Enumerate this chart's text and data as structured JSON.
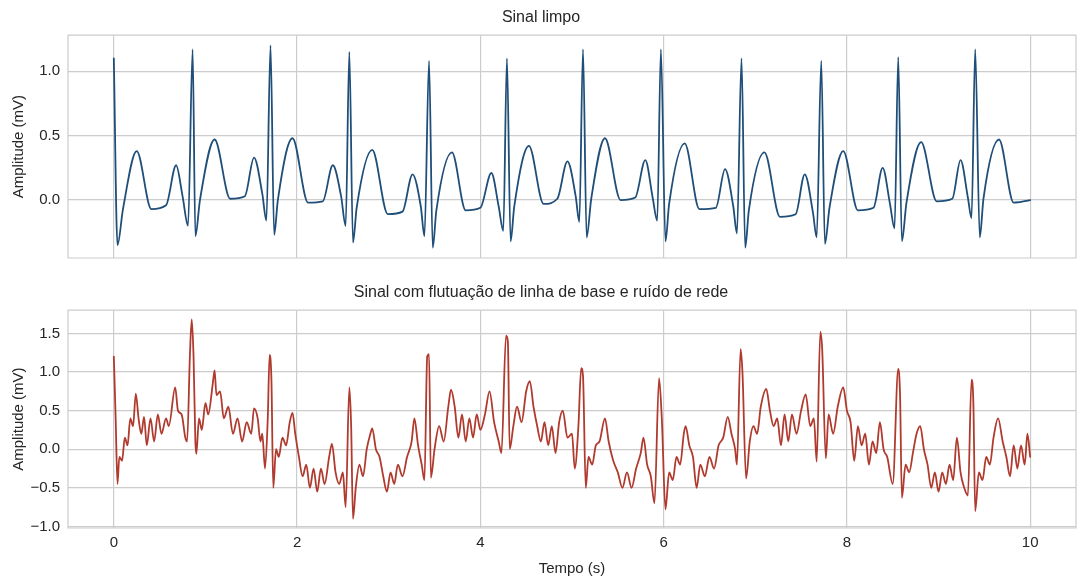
{
  "chart_data": [
    {
      "type": "line",
      "title": "Sinal limpo",
      "ylabel": "Amplitude (mV)",
      "tick_labels": "y",
      "grid": true,
      "legend": false,
      "marker": "none",
      "line_style": "solid",
      "xlim": [
        -0.5,
        10.5
      ],
      "xticks": [
        0,
        2,
        4,
        6,
        8,
        10
      ],
      "ylim": [
        -0.45,
        1.28
      ],
      "yticks": [
        {
          "value": 0,
          "label": "0.0"
        },
        {
          "value": 0.5,
          "label": "0.5"
        },
        {
          "value": 1,
          "label": "1.0"
        }
      ],
      "series": [
        {
          "color": "#1f4e79",
          "x": [
            0,
            0.04,
            0.1,
            0.25,
            0.41,
            0.57,
            0.68,
            0.75,
            0.81,
            0.86,
            0.89,
            0.94,
            1.1,
            1.27,
            1.43,
            1.53,
            1.62,
            1.665,
            1.71,
            1.75,
            1.79,
            1.95,
            2.12,
            2.28,
            2.39,
            2.48,
            2.53,
            2.57,
            2.61,
            2.65,
            2.82,
            2.99,
            3.15,
            3.26,
            3.35,
            3.39,
            3.44,
            3.48,
            3.52,
            3.69,
            3.84,
            4.0,
            4.12,
            4.2,
            4.25,
            4.29,
            4.33,
            4.37,
            4.53,
            4.69,
            4.84,
            4.95,
            5.04,
            5.08,
            5.12,
            5.16,
            5.21,
            5.36,
            5.53,
            5.69,
            5.8,
            5.88,
            5.93,
            5.97,
            6.02,
            6.06,
            6.23,
            6.39,
            6.57,
            6.67,
            6.76,
            6.8,
            6.85,
            6.89,
            6.93,
            7.1,
            7.27,
            7.44,
            7.54,
            7.63,
            7.67,
            7.72,
            7.76,
            7.81,
            7.96,
            8.12,
            8.29,
            8.39,
            8.47,
            8.52,
            8.56,
            8.6,
            8.65,
            8.81,
            8.98,
            9.15,
            9.24,
            9.32,
            9.36,
            9.4,
            9.45,
            9.49,
            9.66,
            9.82,
            10
          ],
          "values": [
            1.1,
            -0.35,
            -0.07,
            0.38,
            -0.07,
            -0.04,
            0.27,
            0.03,
            -0.2,
            1.17,
            -0.28,
            0.0,
            0.47,
            0.01,
            0.03,
            0.33,
            0.05,
            -0.16,
            1.2,
            -0.27,
            0.0,
            0.48,
            -0.02,
            -0.01,
            0.27,
            0.03,
            -0.2,
            1.15,
            -0.33,
            -0.06,
            0.39,
            -0.11,
            -0.09,
            0.2,
            -0.05,
            -0.28,
            1.08,
            -0.37,
            -0.08,
            0.37,
            -0.08,
            -0.06,
            0.21,
            -0.05,
            -0.24,
            1.1,
            -0.32,
            -0.05,
            0.42,
            -0.03,
            0.01,
            0.3,
            0.03,
            -0.17,
            1.17,
            -0.29,
            0.01,
            0.48,
            0.0,
            0.02,
            0.31,
            0.02,
            -0.16,
            1.17,
            -0.32,
            -0.03,
            0.44,
            -0.07,
            -0.06,
            0.24,
            -0.05,
            -0.26,
            1.1,
            -0.37,
            -0.08,
            0.37,
            -0.13,
            -0.11,
            0.2,
            -0.1,
            -0.29,
            1.08,
            -0.34,
            -0.06,
            0.38,
            -0.08,
            -0.06,
            0.25,
            -0.03,
            -0.22,
            1.11,
            -0.32,
            -0.02,
            0.45,
            -0.01,
            0.01,
            0.31,
            0.02,
            -0.14,
            1.17,
            -0.29,
            0.01,
            0.47,
            -0.02,
            0.0
          ]
        }
      ]
    },
    {
      "type": "line",
      "title": "Sinal com flutuação de linha de base e ruído de rede",
      "xlabel": "Tempo (s)",
      "ylabel": "Amplitude (mV)",
      "grid": true,
      "legend": false,
      "marker": "none",
      "line_style": "solid",
      "xlim": [
        -0.5,
        10.5
      ],
      "xticks": [
        0,
        2,
        4,
        6,
        8,
        10
      ],
      "ylim": [
        -1.02,
        1.8
      ],
      "yticks": [
        {
          "value": -1,
          "label": "−1.0"
        },
        {
          "value": -0.5,
          "label": "−0.5"
        },
        {
          "value": 0,
          "label": "0.0"
        },
        {
          "value": 0.5,
          "label": "0.5"
        },
        {
          "value": 1,
          "label": "1.0"
        },
        {
          "value": 1.5,
          "label": "1.5"
        }
      ],
      "series": [
        {
          "color": "#b03a2e",
          "x": [
            0,
            0.02,
            0.04,
            0.06,
            0.09,
            0.12,
            0.15,
            0.18,
            0.21,
            0.24,
            0.27,
            0.3,
            0.33,
            0.36,
            0.4,
            0.44,
            0.48,
            0.52,
            0.57,
            0.6,
            0.67,
            0.7,
            0.74,
            0.78,
            0.8,
            0.83,
            0.85,
            0.87,
            0.89,
            0.9,
            0.93,
            0.96,
            1.0,
            1.03,
            1.08,
            1.1,
            1.12,
            1.16,
            1.2,
            1.25,
            1.3,
            1.35,
            1.4,
            1.45,
            1.5,
            1.53,
            1.57,
            1.6,
            1.62,
            1.65,
            1.68,
            1.7,
            1.72,
            1.74,
            1.77,
            1.8,
            1.84,
            1.88,
            1.92,
            1.95,
            1.98,
            2.02,
            2.06,
            2.1,
            2.14,
            2.18,
            2.22,
            2.26,
            2.3,
            2.35,
            2.38,
            2.42,
            2.46,
            2.5,
            2.53,
            2.57,
            2.59,
            2.61,
            2.64,
            2.68,
            2.72,
            2.76,
            2.8,
            2.82,
            2.86,
            2.9,
            2.94,
            2.98,
            3.02,
            3.06,
            3.1,
            3.15,
            3.2,
            3.25,
            3.28,
            3.32,
            3.36,
            3.39,
            3.42,
            3.44,
            3.46,
            3.5,
            3.55,
            3.6,
            3.65,
            3.68,
            3.72,
            3.76,
            3.8,
            3.84,
            3.88,
            3.92,
            3.96,
            4.0,
            4.05,
            4.1,
            4.15,
            4.2,
            4.23,
            4.28,
            4.3,
            4.32,
            4.36,
            4.4,
            4.45,
            4.5,
            4.54,
            4.58,
            4.62,
            4.66,
            4.7,
            4.74,
            4.78,
            4.82,
            4.86,
            4.9,
            4.95,
            5.0,
            5.03,
            5.07,
            5.1,
            5.12,
            5.15,
            5.18,
            5.22,
            5.26,
            5.3,
            5.36,
            5.4,
            5.45,
            5.5,
            5.55,
            5.6,
            5.65,
            5.7,
            5.75,
            5.78,
            5.82,
            5.86,
            5.9,
            5.95,
            5.98,
            6.02,
            6.06,
            6.1,
            6.14,
            6.18,
            6.22,
            6.24,
            6.28,
            6.32,
            6.36,
            6.4,
            6.45,
            6.5,
            6.55,
            6.6,
            6.65,
            6.7,
            6.74,
            6.78,
            6.8,
            6.84,
            6.86,
            6.9,
            6.94,
            6.98,
            7.02,
            7.06,
            7.12,
            7.16,
            7.2,
            7.24,
            7.28,
            7.32,
            7.36,
            7.4,
            7.45,
            7.5,
            7.55,
            7.6,
            7.64,
            7.67,
            7.71,
            7.73,
            7.77,
            7.8,
            7.85,
            7.9,
            7.96,
            8.0,
            8.04,
            8.08,
            8.12,
            8.16,
            8.2,
            8.24,
            8.28,
            8.32,
            8.36,
            8.4,
            8.44,
            8.5,
            8.56,
            8.58,
            8.6,
            8.64,
            8.68,
            8.72,
            8.76,
            8.8,
            8.84,
            8.88,
            8.92,
            8.96,
            9.0,
            9.04,
            9.08,
            9.12,
            9.16,
            9.2,
            9.24,
            9.28,
            9.32,
            9.36,
            9.38,
            9.4,
            9.44,
            9.48,
            9.52,
            9.56,
            9.6,
            9.65,
            9.7,
            9.74,
            9.78,
            9.82,
            9.86,
            9.9,
            9.94,
            9.97,
            10
          ],
          "values": [
            1.2,
            0.4,
            -0.45,
            -0.1,
            -0.15,
            0.15,
            0.05,
            0.4,
            0.3,
            0.72,
            0.4,
            0.2,
            0.42,
            0.05,
            0.4,
            0.1,
            0.45,
            0.2,
            0.4,
            0.3,
            0.8,
            0.5,
            0.45,
            0.15,
            0.1,
            1.2,
            1.68,
            1.2,
            0.1,
            -0.06,
            0.4,
            0.25,
            0.6,
            0.45,
            0.85,
            1.02,
            0.7,
            0.75,
            0.4,
            0.55,
            0.2,
            0.4,
            0.1,
            0.35,
            0.2,
            0.53,
            0.4,
            0.1,
            0.2,
            -0.25,
            0.4,
            1.22,
            0.9,
            -0.5,
            0.0,
            -0.1,
            0.15,
            0.05,
            0.35,
            0.47,
            0.2,
            -0.1,
            -0.35,
            -0.2,
            -0.5,
            -0.25,
            -0.55,
            -0.25,
            -0.45,
            -0.1,
            0.07,
            -0.3,
            -0.45,
            -0.3,
            -0.75,
            0.8,
            0.3,
            -0.9,
            -0.5,
            -0.2,
            -0.35,
            0.0,
            0.2,
            0.27,
            0.0,
            -0.1,
            -0.35,
            -0.55,
            -0.3,
            -0.45,
            -0.2,
            -0.35,
            -0.1,
            0.1,
            0.4,
            0.05,
            -0.2,
            -0.4,
            1.2,
            1.23,
            -0.37,
            0.0,
            0.3,
            0.1,
            0.55,
            0.77,
            0.55,
            0.15,
            0.45,
            0.1,
            0.4,
            0.15,
            0.45,
            0.25,
            0.45,
            0.75,
            0.35,
            0.1,
            -0.05,
            1.47,
            1.4,
            0.0,
            0.3,
            0.55,
            0.35,
            0.75,
            0.88,
            0.55,
            0.3,
            0.1,
            0.35,
            0.05,
            0.3,
            -0.05,
            0.35,
            0.5,
            0.15,
            0.2,
            -0.25,
            0.3,
            1.05,
            0.95,
            -0.5,
            -0.1,
            -0.2,
            0.05,
            0.1,
            0.4,
            0.1,
            -0.15,
            -0.3,
            -0.5,
            -0.3,
            -0.5,
            -0.25,
            -0.05,
            0.15,
            -0.2,
            -0.35,
            -0.7,
            0.92,
            0.4,
            -0.78,
            -0.3,
            -0.4,
            -0.1,
            -0.2,
            0.2,
            0.3,
            0.05,
            -0.1,
            -0.5,
            -0.2,
            -0.35,
            -0.1,
            -0.25,
            0.05,
            0.15,
            0.42,
            0.2,
            0.0,
            -0.2,
            1.3,
            1.0,
            -0.38,
            0.1,
            0.3,
            0.2,
            0.55,
            0.78,
            0.5,
            0.3,
            0.4,
            0.05,
            0.45,
            0.1,
            0.45,
            0.2,
            0.5,
            0.71,
            0.3,
            0.4,
            -0.16,
            1.52,
            1.3,
            -0.12,
            0.45,
            0.2,
            0.55,
            0.8,
            0.5,
            0.35,
            -0.15,
            0.3,
            0.05,
            0.2,
            -0.2,
            0.1,
            -0.05,
            0.35,
            0.0,
            -0.1,
            -0.45,
            1.04,
            0.7,
            -0.63,
            -0.2,
            -0.3,
            -0.05,
            0.2,
            0.3,
            0.0,
            -0.2,
            -0.5,
            -0.3,
            -0.55,
            -0.3,
            -0.45,
            -0.2,
            -0.4,
            0.15,
            -0.3,
            -0.5,
            -0.6,
            0.9,
            0.6,
            -0.8,
            -0.3,
            -0.4,
            -0.1,
            -0.2,
            0.15,
            0.4,
            0.1,
            -0.1,
            -0.35,
            0.05,
            -0.25,
            0.05,
            -0.2,
            0.2,
            -0.1
          ]
        }
      ]
    }
  ]
}
